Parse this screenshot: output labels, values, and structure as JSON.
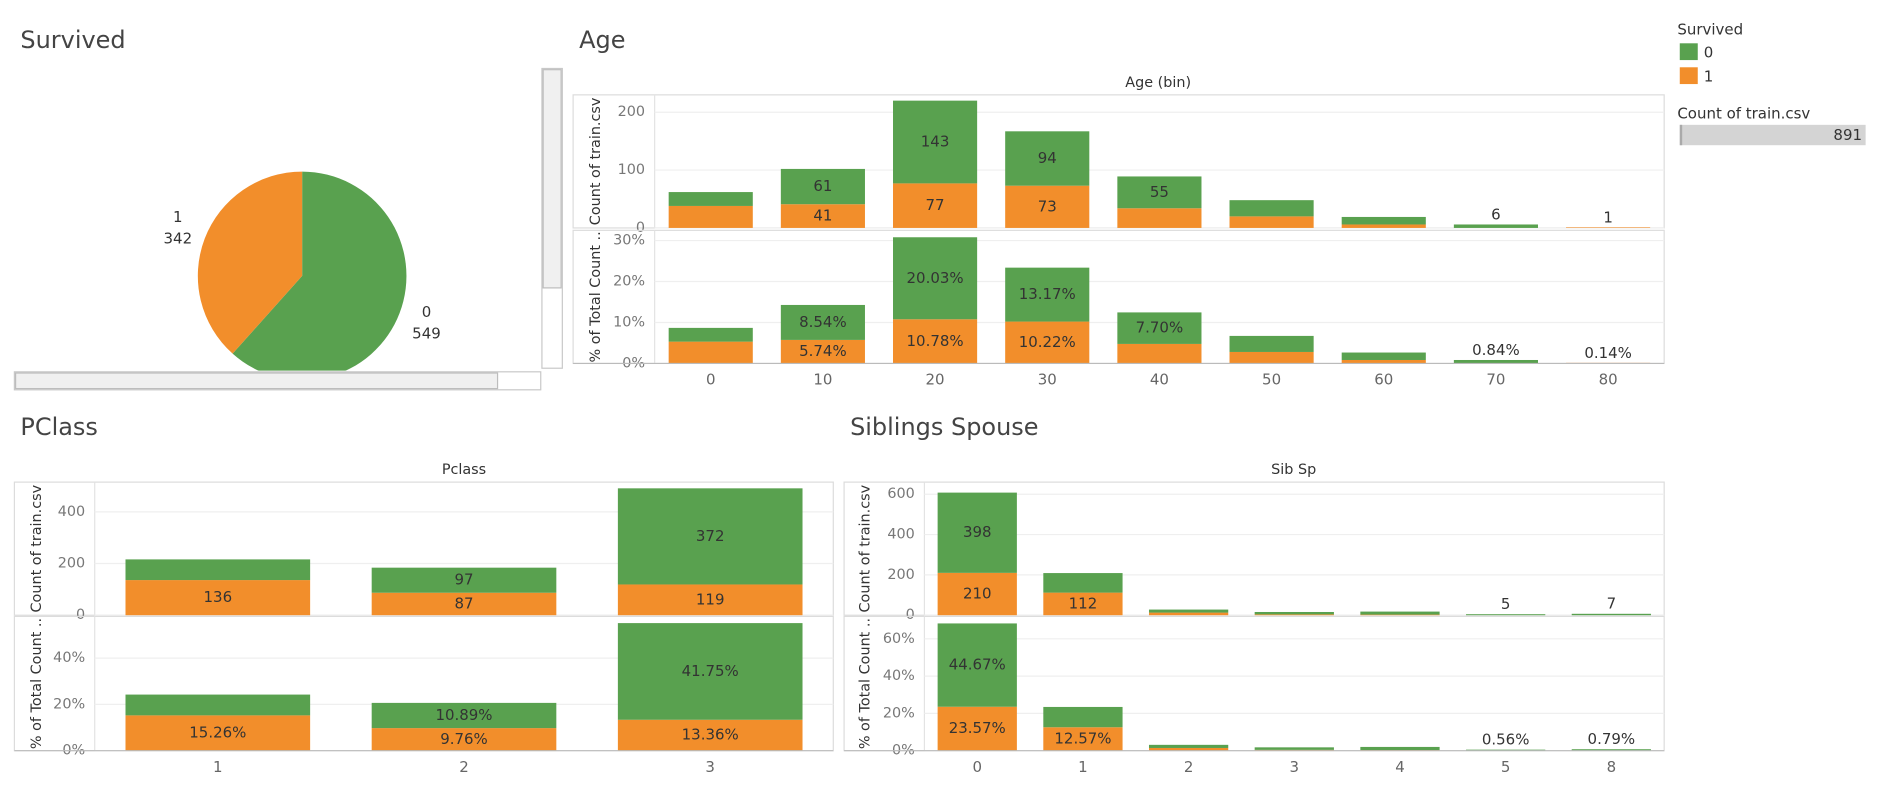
{
  "chart_data": [
    {
      "type": "pie",
      "title": "Survived",
      "legend_title": "Survived",
      "categories": [
        "0",
        "1"
      ],
      "values": [
        549,
        342
      ],
      "colors": [
        "#59a14f",
        "#f28e2b"
      ]
    },
    {
      "type": "bar",
      "stacked": true,
      "grid": true,
      "title": "Age",
      "x_label": "Age (bin)",
      "categories": [
        "0",
        "10",
        "20",
        "30",
        "40",
        "50",
        "60",
        "70",
        "80"
      ],
      "panels": [
        {
          "y_label": "Count of train.csv",
          "ylim": [
            0,
            230
          ],
          "yticks": [
            0,
            100,
            200
          ],
          "series": [
            {
              "color": "#59a14f",
              "values": [
                24,
                61,
                143,
                94,
                55,
                28,
                13,
                6,
                null
              ],
              "value_labels": [
                null,
                "61",
                "143",
                "94",
                "55",
                null,
                null,
                "6",
                null
              ]
            },
            {
              "color": "#f28e2b",
              "values": [
                38,
                41,
                77,
                73,
                34,
                20,
                6,
                null,
                1
              ],
              "value_labels": [
                null,
                "41",
                "77",
                "73",
                null,
                null,
                null,
                null,
                "1"
              ]
            }
          ]
        },
        {
          "y_label": "% of Total Count ..",
          "ylim": [
            0,
            32.5
          ],
          "yticks": [
            {
              "value": 0,
              "label": "0%"
            },
            {
              "value": 10,
              "label": "10%"
            },
            {
              "value": 20,
              "label": "20%"
            },
            {
              "value": 30,
              "label": "30%"
            }
          ],
          "series": [
            {
              "color": "#59a14f",
              "values": [
                3.36,
                8.54,
                20.03,
                13.17,
                7.7,
                3.92,
                1.82,
                0.84,
                null
              ],
              "value_labels": [
                null,
                "8.54%",
                "20.03%",
                "13.17%",
                "7.70%",
                null,
                null,
                "0.84%",
                null
              ]
            },
            {
              "color": "#f28e2b",
              "values": [
                5.32,
                5.74,
                10.78,
                10.22,
                4.76,
                2.8,
                0.84,
                null,
                0.14
              ],
              "value_labels": [
                null,
                "5.74%",
                "10.78%",
                "10.22%",
                null,
                null,
                null,
                null,
                "0.14%"
              ]
            }
          ]
        }
      ]
    },
    {
      "type": "bar",
      "stacked": true,
      "grid": true,
      "title": "PClass",
      "x_label": "Pclass",
      "categories": [
        "1",
        "2",
        "3"
      ],
      "panels": [
        {
          "y_label": "Count of train.csv",
          "ylim": [
            0,
            515
          ],
          "yticks": [
            0,
            200,
            400
          ],
          "series": [
            {
              "color": "#59a14f",
              "values": [
                80,
                97,
                372
              ],
              "value_labels": [
                null,
                "97",
                "372"
              ]
            },
            {
              "color": "#f28e2b",
              "values": [
                136,
                87,
                119
              ],
              "value_labels": [
                "136",
                "87",
                "119"
              ]
            }
          ]
        },
        {
          "y_label": "% of Total Count ..",
          "ylim": [
            0,
            58
          ],
          "yticks": [
            {
              "value": 0,
              "label": "0%"
            },
            {
              "value": 20,
              "label": "20%"
            },
            {
              "value": 40,
              "label": "40%"
            }
          ],
          "series": [
            {
              "color": "#59a14f",
              "values": [
                8.98,
                10.89,
                41.75
              ],
              "value_labels": [
                null,
                "10.89%",
                "41.75%"
              ]
            },
            {
              "color": "#f28e2b",
              "values": [
                15.26,
                9.76,
                13.36
              ],
              "value_labels": [
                "15.26%",
                "9.76%",
                "13.36%"
              ]
            }
          ]
        }
      ]
    },
    {
      "type": "bar",
      "stacked": true,
      "grid": true,
      "title": "Siblings Spouse",
      "x_label": "Sib Sp",
      "categories": [
        "0",
        "1",
        "2",
        "3",
        "4",
        "5",
        "8"
      ],
      "panels": [
        {
          "y_label": "Count of train.csv",
          "ylim": [
            0,
            660
          ],
          "yticks": [
            0,
            200,
            400,
            600
          ],
          "series": [
            {
              "color": "#59a14f",
              "values": [
                398,
                97,
                15,
                12,
                15,
                5,
                7
              ],
              "value_labels": [
                "398",
                null,
                null,
                null,
                null,
                "5",
                "7"
              ]
            },
            {
              "color": "#f28e2b",
              "values": [
                210,
                112,
                13,
                4,
                3,
                null,
                null
              ],
              "value_labels": [
                "210",
                "112",
                null,
                null,
                null,
                null,
                null
              ]
            }
          ]
        },
        {
          "y_label": "% of Total Count ..",
          "ylim": [
            0,
            72
          ],
          "yticks": [
            {
              "value": 0,
              "label": "0%"
            },
            {
              "value": 20,
              "label": "20%"
            },
            {
              "value": 40,
              "label": "40%"
            },
            {
              "value": 60,
              "label": "60%"
            }
          ],
          "series": [
            {
              "color": "#59a14f",
              "values": [
                44.67,
                10.89,
                1.68,
                1.35,
                1.68,
                0.56,
                0.79
              ],
              "value_labels": [
                "44.67%",
                null,
                null,
                null,
                null,
                "0.56%",
                "0.79%"
              ]
            },
            {
              "color": "#f28e2b",
              "values": [
                23.57,
                12.57,
                1.46,
                0.45,
                0.34,
                null,
                null
              ],
              "value_labels": [
                "23.57%",
                "12.57%",
                null,
                null,
                null,
                null,
                null
              ]
            }
          ]
        }
      ]
    }
  ],
  "summary": {
    "label": "Count of train.csv",
    "value": 891
  }
}
